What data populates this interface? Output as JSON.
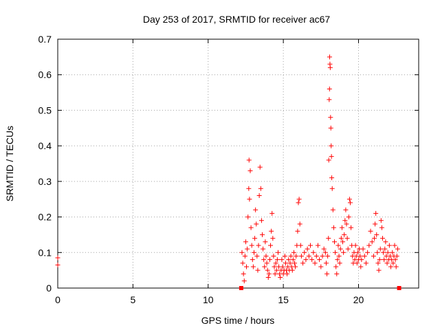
{
  "chart_data": {
    "type": "scatter",
    "title": "Day 253 of 2017, SRMTID for receiver ac67",
    "xlabel": "GPS time / hours",
    "ylabel": "SRMTID / TECUs",
    "xlim": [
      0,
      24
    ],
    "ylim": [
      0,
      0.7
    ],
    "x_ticks": [
      0,
      5,
      10,
      15,
      20
    ],
    "x_tick_labels": [
      "0",
      "5",
      "10",
      "15",
      "20"
    ],
    "y_ticks": [
      0,
      0.1,
      0.2,
      0.3,
      0.4,
      0.5,
      0.6,
      0.7
    ],
    "y_tick_labels": [
      "0",
      "0.1",
      "0.2",
      "0.3",
      "0.4",
      "0.5",
      "0.6",
      "0.7"
    ],
    "grid": true,
    "marker": "plus",
    "color": "#ff0000",
    "gap_markers_x": [
      12.2,
      22.7
    ],
    "series": [
      {
        "name": "SRMTID",
        "points": [
          [
            0.0,
            0.085
          ],
          [
            0.0,
            0.065
          ],
          [
            12.25,
            0.1
          ],
          [
            12.3,
            0.07
          ],
          [
            12.35,
            0.04
          ],
          [
            12.4,
            0.02
          ],
          [
            12.45,
            0.09
          ],
          [
            12.5,
            0.13
          ],
          [
            12.55,
            0.06
          ],
          [
            12.6,
            0.11
          ],
          [
            12.65,
            0.2
          ],
          [
            12.7,
            0.28
          ],
          [
            12.72,
            0.36
          ],
          [
            12.75,
            0.25
          ],
          [
            12.8,
            0.33
          ],
          [
            12.85,
            0.17
          ],
          [
            12.9,
            0.12
          ],
          [
            12.95,
            0.08
          ],
          [
            13.0,
            0.06
          ],
          [
            13.05,
            0.1
          ],
          [
            13.1,
            0.14
          ],
          [
            13.15,
            0.22
          ],
          [
            13.2,
            0.18
          ],
          [
            13.25,
            0.09
          ],
          [
            13.3,
            0.05
          ],
          [
            13.35,
            0.12
          ],
          [
            13.4,
            0.26
          ],
          [
            13.45,
            0.34
          ],
          [
            13.5,
            0.28
          ],
          [
            13.55,
            0.19
          ],
          [
            13.6,
            0.15
          ],
          [
            13.65,
            0.11
          ],
          [
            13.7,
            0.08
          ],
          [
            13.75,
            0.06
          ],
          [
            13.8,
            0.13
          ],
          [
            13.85,
            0.09
          ],
          [
            13.9,
            0.07
          ],
          [
            13.95,
            0.05
          ],
          [
            14.0,
            0.03
          ],
          [
            14.05,
            0.04
          ],
          [
            14.1,
            0.08
          ],
          [
            14.15,
            0.12
          ],
          [
            14.2,
            0.16
          ],
          [
            14.25,
            0.21
          ],
          [
            14.3,
            0.14
          ],
          [
            14.35,
            0.09
          ],
          [
            14.4,
            0.06
          ],
          [
            14.45,
            0.04
          ],
          [
            14.5,
            0.07
          ],
          [
            14.55,
            0.05
          ],
          [
            14.6,
            0.08
          ],
          [
            14.65,
            0.1
          ],
          [
            14.7,
            0.06
          ],
          [
            14.75,
            0.04
          ],
          [
            14.8,
            0.03
          ],
          [
            14.85,
            0.05
          ],
          [
            14.9,
            0.08
          ],
          [
            14.95,
            0.06
          ],
          [
            15.0,
            0.04
          ],
          [
            15.05,
            0.05
          ],
          [
            15.1,
            0.09
          ],
          [
            15.15,
            0.07
          ],
          [
            15.2,
            0.05
          ],
          [
            15.25,
            0.04
          ],
          [
            15.3,
            0.06
          ],
          [
            15.35,
            0.08
          ],
          [
            15.4,
            0.05
          ],
          [
            15.45,
            0.07
          ],
          [
            15.5,
            0.09
          ],
          [
            15.55,
            0.06
          ],
          [
            15.6,
            0.05
          ],
          [
            15.65,
            0.08
          ],
          [
            15.7,
            0.1
          ],
          [
            15.75,
            0.07
          ],
          [
            15.8,
            0.06
          ],
          [
            15.85,
            0.09
          ],
          [
            15.9,
            0.12
          ],
          [
            15.95,
            0.16
          ],
          [
            16.0,
            0.24
          ],
          [
            16.05,
            0.25
          ],
          [
            16.1,
            0.18
          ],
          [
            16.15,
            0.12
          ],
          [
            16.2,
            0.09
          ],
          [
            16.3,
            0.07
          ],
          [
            16.4,
            0.1
          ],
          [
            16.5,
            0.08
          ],
          [
            16.6,
            0.11
          ],
          [
            16.7,
            0.09
          ],
          [
            16.8,
            0.12
          ],
          [
            16.9,
            0.08
          ],
          [
            17.0,
            0.1
          ],
          [
            17.1,
            0.07
          ],
          [
            17.2,
            0.09
          ],
          [
            17.3,
            0.12
          ],
          [
            17.4,
            0.08
          ],
          [
            17.5,
            0.06
          ],
          [
            17.6,
            0.09
          ],
          [
            17.7,
            0.11
          ],
          [
            17.8,
            0.1
          ],
          [
            17.85,
            0.07
          ],
          [
            17.9,
            0.04
          ],
          [
            17.95,
            0.09
          ],
          [
            18.0,
            0.14
          ],
          [
            18.02,
            0.36
          ],
          [
            18.05,
            0.53
          ],
          [
            18.07,
            0.56
          ],
          [
            18.08,
            0.65
          ],
          [
            18.1,
            0.63
          ],
          [
            18.12,
            0.62
          ],
          [
            18.14,
            0.48
          ],
          [
            18.16,
            0.45
          ],
          [
            18.18,
            0.4
          ],
          [
            18.2,
            0.37
          ],
          [
            18.22,
            0.31
          ],
          [
            18.25,
            0.28
          ],
          [
            18.3,
            0.22
          ],
          [
            18.35,
            0.17
          ],
          [
            18.4,
            0.13
          ],
          [
            18.45,
            0.1
          ],
          [
            18.5,
            0.06
          ],
          [
            18.55,
            0.04
          ],
          [
            18.6,
            0.08
          ],
          [
            18.65,
            0.12
          ],
          [
            18.7,
            0.09
          ],
          [
            18.75,
            0.07
          ],
          [
            18.8,
            0.11
          ],
          [
            18.85,
            0.14
          ],
          [
            18.9,
            0.17
          ],
          [
            18.95,
            0.13
          ],
          [
            19.0,
            0.1
          ],
          [
            19.05,
            0.15
          ],
          [
            19.1,
            0.19
          ],
          [
            19.15,
            0.22
          ],
          [
            19.2,
            0.18
          ],
          [
            19.25,
            0.14
          ],
          [
            19.3,
            0.11
          ],
          [
            19.35,
            0.2
          ],
          [
            19.4,
            0.25
          ],
          [
            19.45,
            0.24
          ],
          [
            19.5,
            0.17
          ],
          [
            19.55,
            0.12
          ],
          [
            19.6,
            0.09
          ],
          [
            19.65,
            0.07
          ],
          [
            19.7,
            0.1
          ],
          [
            19.75,
            0.08
          ],
          [
            19.8,
            0.12
          ],
          [
            19.85,
            0.09
          ],
          [
            19.9,
            0.07
          ],
          [
            19.95,
            0.1
          ],
          [
            20.0,
            0.08
          ],
          [
            20.05,
            0.11
          ],
          [
            20.1,
            0.09
          ],
          [
            20.15,
            0.06
          ],
          [
            20.2,
            0.08
          ],
          [
            20.3,
            0.11
          ],
          [
            20.4,
            0.09
          ],
          [
            20.5,
            0.07
          ],
          [
            20.6,
            0.1
          ],
          [
            20.7,
            0.12
          ],
          [
            20.8,
            0.16
          ],
          [
            20.9,
            0.13
          ],
          [
            21.0,
            0.09
          ],
          [
            21.05,
            0.14
          ],
          [
            21.1,
            0.18
          ],
          [
            21.15,
            0.21
          ],
          [
            21.2,
            0.15
          ],
          [
            21.25,
            0.1
          ],
          [
            21.3,
            0.07
          ],
          [
            21.35,
            0.05
          ],
          [
            21.4,
            0.08
          ],
          [
            21.45,
            0.11
          ],
          [
            21.5,
            0.19
          ],
          [
            21.55,
            0.17
          ],
          [
            21.6,
            0.14
          ],
          [
            21.65,
            0.1
          ],
          [
            21.7,
            0.08
          ],
          [
            21.75,
            0.11
          ],
          [
            21.8,
            0.13
          ],
          [
            21.85,
            0.09
          ],
          [
            21.9,
            0.07
          ],
          [
            21.95,
            0.1
          ],
          [
            22.0,
            0.08
          ],
          [
            22.05,
            0.12
          ],
          [
            22.1,
            0.09
          ],
          [
            22.15,
            0.06
          ],
          [
            22.2,
            0.08
          ],
          [
            22.25,
            0.1
          ],
          [
            22.3,
            0.07
          ],
          [
            22.35,
            0.09
          ],
          [
            22.4,
            0.12
          ],
          [
            22.45,
            0.08
          ],
          [
            22.5,
            0.06
          ],
          [
            22.55,
            0.09
          ],
          [
            22.6,
            0.11
          ]
        ]
      }
    ]
  }
}
